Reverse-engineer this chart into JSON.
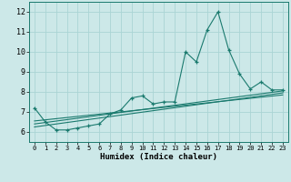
{
  "xlabel": "Humidex (Indice chaleur)",
  "bg_color": "#cce8e8",
  "grid_color": "#aad4d4",
  "line_color": "#1a7a6e",
  "xlim": [
    -0.5,
    23.5
  ],
  "ylim": [
    5.5,
    12.5
  ],
  "yticks": [
    6,
    7,
    8,
    9,
    10,
    11,
    12
  ],
  "xticks": [
    0,
    1,
    2,
    3,
    4,
    5,
    6,
    7,
    8,
    9,
    10,
    11,
    12,
    13,
    14,
    15,
    16,
    17,
    18,
    19,
    20,
    21,
    22,
    23
  ],
  "series1_x": [
    0,
    1,
    2,
    3,
    4,
    5,
    6,
    7,
    8,
    9,
    10,
    11,
    12,
    13,
    14,
    15,
    16,
    17,
    18,
    19,
    20,
    21,
    22,
    23
  ],
  "series1_y": [
    7.2,
    6.5,
    6.1,
    6.1,
    6.2,
    6.3,
    6.4,
    6.9,
    7.1,
    7.7,
    7.8,
    7.4,
    7.5,
    7.5,
    10.0,
    9.5,
    11.1,
    12.0,
    10.1,
    8.9,
    8.15,
    8.5,
    8.1,
    8.1
  ],
  "trend1_x": [
    0,
    23
  ],
  "trend1_y": [
    6.55,
    7.85
  ],
  "trend2_x": [
    0,
    23
  ],
  "trend2_y": [
    6.4,
    8.05
  ],
  "trend3_x": [
    0,
    23
  ],
  "trend3_y": [
    6.25,
    7.95
  ]
}
